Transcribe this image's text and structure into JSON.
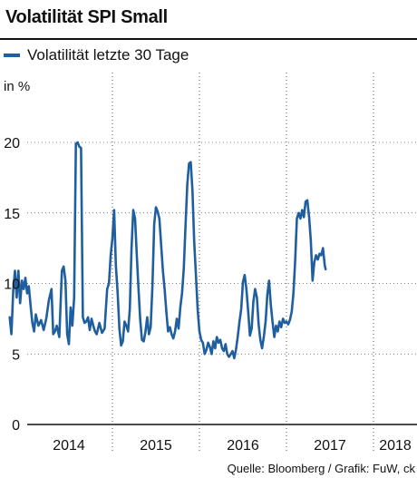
{
  "header": {
    "title": "Volatilität SPI Small"
  },
  "unit_label": "in %",
  "source": "Quelle: Bloomberg / Grafik: FuW, ck",
  "colors": {
    "line": "#1f5fa0",
    "text": "#111111",
    "grid": "#555555"
  },
  "chart_data": {
    "type": "line",
    "title": "Volatilität SPI Small",
    "ylabel": "in %",
    "xlabel": "",
    "ylim": [
      0,
      20
    ],
    "yticks": [
      0,
      5,
      10,
      15,
      20
    ],
    "xlim": [
      2013.8,
      2018.45
    ],
    "x_tick_labels": [
      {
        "label": "2014",
        "x": 2014.5
      },
      {
        "label": "2015",
        "x": 2015.5
      },
      {
        "label": "2016",
        "x": 2016.5
      },
      {
        "label": "2017",
        "x": 2017.5
      },
      {
        "label": "2018",
        "x": 2018.25
      }
    ],
    "x_gridlines": [
      2015.0,
      2016.0,
      2017.0,
      2018.0
    ],
    "grid": "vertical dotted",
    "legend": "top-left",
    "series": [
      {
        "name": "Volatilität letzte 30 Tage",
        "points": [
          [
            2013.82,
            7.6
          ],
          [
            2013.84,
            6.4
          ],
          [
            2013.86,
            9.5
          ],
          [
            2013.88,
            10.9
          ],
          [
            2013.9,
            9.0
          ],
          [
            2013.92,
            10.9
          ],
          [
            2013.94,
            8.6
          ],
          [
            2013.96,
            10.2
          ],
          [
            2013.98,
            9.6
          ],
          [
            2014.0,
            10.4
          ],
          [
            2014.02,
            9.3
          ],
          [
            2014.04,
            9.8
          ],
          [
            2014.06,
            8.4
          ],
          [
            2014.08,
            7.2
          ],
          [
            2014.1,
            6.6
          ],
          [
            2014.12,
            7.8
          ],
          [
            2014.15,
            7.0
          ],
          [
            2014.18,
            7.4
          ],
          [
            2014.21,
            6.7
          ],
          [
            2014.24,
            7.5
          ],
          [
            2014.27,
            8.8
          ],
          [
            2014.3,
            9.6
          ],
          [
            2014.32,
            6.4
          ],
          [
            2014.34,
            6.6
          ],
          [
            2014.36,
            7.0
          ],
          [
            2014.39,
            6.2
          ],
          [
            2014.42,
            10.9
          ],
          [
            2014.44,
            11.2
          ],
          [
            2014.46,
            10.2
          ],
          [
            2014.48,
            6.4
          ],
          [
            2014.5,
            5.7
          ],
          [
            2014.52,
            8.3
          ],
          [
            2014.54,
            7.0
          ],
          [
            2014.56,
            9.0
          ],
          [
            2014.58,
            19.9
          ],
          [
            2014.6,
            20.0
          ],
          [
            2014.62,
            19.7
          ],
          [
            2014.64,
            19.6
          ],
          [
            2014.66,
            7.6
          ],
          [
            2014.68,
            7.2
          ],
          [
            2014.7,
            7.3
          ],
          [
            2014.72,
            7.6
          ],
          [
            2014.74,
            6.7
          ],
          [
            2014.76,
            7.5
          ],
          [
            2014.78,
            7.0
          ],
          [
            2014.8,
            6.6
          ],
          [
            2014.82,
            6.4
          ],
          [
            2014.85,
            7.2
          ],
          [
            2014.88,
            6.5
          ],
          [
            2014.91,
            6.8
          ],
          [
            2014.94,
            9.6
          ],
          [
            2014.96,
            10.0
          ],
          [
            2014.98,
            12.0
          ],
          [
            2015.0,
            13.2
          ],
          [
            2015.02,
            15.2
          ],
          [
            2015.04,
            11.3
          ],
          [
            2015.06,
            9.3
          ],
          [
            2015.08,
            6.8
          ],
          [
            2015.1,
            5.6
          ],
          [
            2015.12,
            5.9
          ],
          [
            2015.14,
            7.3
          ],
          [
            2015.16,
            7.0
          ],
          [
            2015.18,
            6.6
          ],
          [
            2015.2,
            8.2
          ],
          [
            2015.22,
            12.5
          ],
          [
            2015.24,
            15.2
          ],
          [
            2015.26,
            14.6
          ],
          [
            2015.28,
            12.0
          ],
          [
            2015.3,
            9.6
          ],
          [
            2015.32,
            7.4
          ],
          [
            2015.34,
            6.0
          ],
          [
            2015.36,
            5.9
          ],
          [
            2015.38,
            6.6
          ],
          [
            2015.4,
            7.6
          ],
          [
            2015.42,
            6.4
          ],
          [
            2015.44,
            6.9
          ],
          [
            2015.46,
            9.9
          ],
          [
            2015.48,
            14.2
          ],
          [
            2015.5,
            15.4
          ],
          [
            2015.52,
            15.1
          ],
          [
            2015.54,
            14.6
          ],
          [
            2015.56,
            12.7
          ],
          [
            2015.58,
            10.9
          ],
          [
            2015.6,
            9.6
          ],
          [
            2015.62,
            8.0
          ],
          [
            2015.64,
            6.6
          ],
          [
            2015.66,
            6.9
          ],
          [
            2015.68,
            6.4
          ],
          [
            2015.7,
            6.1
          ],
          [
            2015.72,
            6.6
          ],
          [
            2015.74,
            7.5
          ],
          [
            2015.76,
            6.8
          ],
          [
            2015.78,
            8.3
          ],
          [
            2015.8,
            9.3
          ],
          [
            2015.82,
            11.0
          ],
          [
            2015.84,
            14.0
          ],
          [
            2015.86,
            17.0
          ],
          [
            2015.88,
            18.5
          ],
          [
            2015.9,
            18.6
          ],
          [
            2015.92,
            16.6
          ],
          [
            2015.94,
            13.0
          ],
          [
            2015.96,
            10.5
          ],
          [
            2015.98,
            8.1
          ],
          [
            2016.0,
            6.6
          ],
          [
            2016.02,
            6.0
          ],
          [
            2016.04,
            5.8
          ],
          [
            2016.06,
            5.0
          ],
          [
            2016.08,
            5.3
          ],
          [
            2016.1,
            5.8
          ],
          [
            2016.12,
            5.5
          ],
          [
            2016.14,
            5.0
          ],
          [
            2016.16,
            5.9
          ],
          [
            2016.18,
            5.4
          ],
          [
            2016.2,
            6.2
          ],
          [
            2016.22,
            5.8
          ],
          [
            2016.24,
            6.0
          ],
          [
            2016.26,
            5.4
          ],
          [
            2016.28,
            5.2
          ],
          [
            2016.3,
            5.7
          ],
          [
            2016.32,
            5.0
          ],
          [
            2016.34,
            4.8
          ],
          [
            2016.36,
            5.0
          ],
          [
            2016.38,
            5.2
          ],
          [
            2016.4,
            4.7
          ],
          [
            2016.42,
            5.3
          ],
          [
            2016.44,
            6.2
          ],
          [
            2016.46,
            7.3
          ],
          [
            2016.48,
            8.2
          ],
          [
            2016.5,
            10.1
          ],
          [
            2016.52,
            10.6
          ],
          [
            2016.54,
            9.6
          ],
          [
            2016.56,
            8.0
          ],
          [
            2016.58,
            6.3
          ],
          [
            2016.6,
            6.8
          ],
          [
            2016.62,
            8.7
          ],
          [
            2016.64,
            9.6
          ],
          [
            2016.66,
            9.0
          ],
          [
            2016.68,
            7.1
          ],
          [
            2016.7,
            6.0
          ],
          [
            2016.72,
            5.4
          ],
          [
            2016.74,
            6.2
          ],
          [
            2016.76,
            7.3
          ],
          [
            2016.78,
            9.2
          ],
          [
            2016.8,
            10.2
          ],
          [
            2016.82,
            8.5
          ],
          [
            2016.84,
            7.3
          ],
          [
            2016.86,
            6.2
          ],
          [
            2016.88,
            7.0
          ],
          [
            2016.9,
            6.6
          ],
          [
            2016.92,
            7.3
          ],
          [
            2016.94,
            6.9
          ],
          [
            2016.96,
            7.5
          ],
          [
            2016.98,
            7.2
          ],
          [
            2017.0,
            7.3
          ],
          [
            2017.02,
            7.1
          ],
          [
            2017.04,
            7.4
          ],
          [
            2017.06,
            8.0
          ],
          [
            2017.08,
            9.3
          ],
          [
            2017.1,
            11.6
          ],
          [
            2017.12,
            14.6
          ],
          [
            2017.14,
            15.0
          ],
          [
            2017.16,
            14.6
          ],
          [
            2017.18,
            15.2
          ],
          [
            2017.2,
            14.7
          ],
          [
            2017.22,
            15.8
          ],
          [
            2017.24,
            15.9
          ],
          [
            2017.26,
            14.7
          ],
          [
            2017.28,
            13.0
          ],
          [
            2017.3,
            10.2
          ],
          [
            2017.32,
            11.5
          ],
          [
            2017.34,
            12.0
          ],
          [
            2017.36,
            11.7
          ],
          [
            2017.38,
            12.1
          ],
          [
            2017.4,
            12.0
          ],
          [
            2017.42,
            12.5
          ],
          [
            2017.44,
            11.3
          ],
          [
            2017.45,
            11.0
          ]
        ]
      }
    ]
  }
}
